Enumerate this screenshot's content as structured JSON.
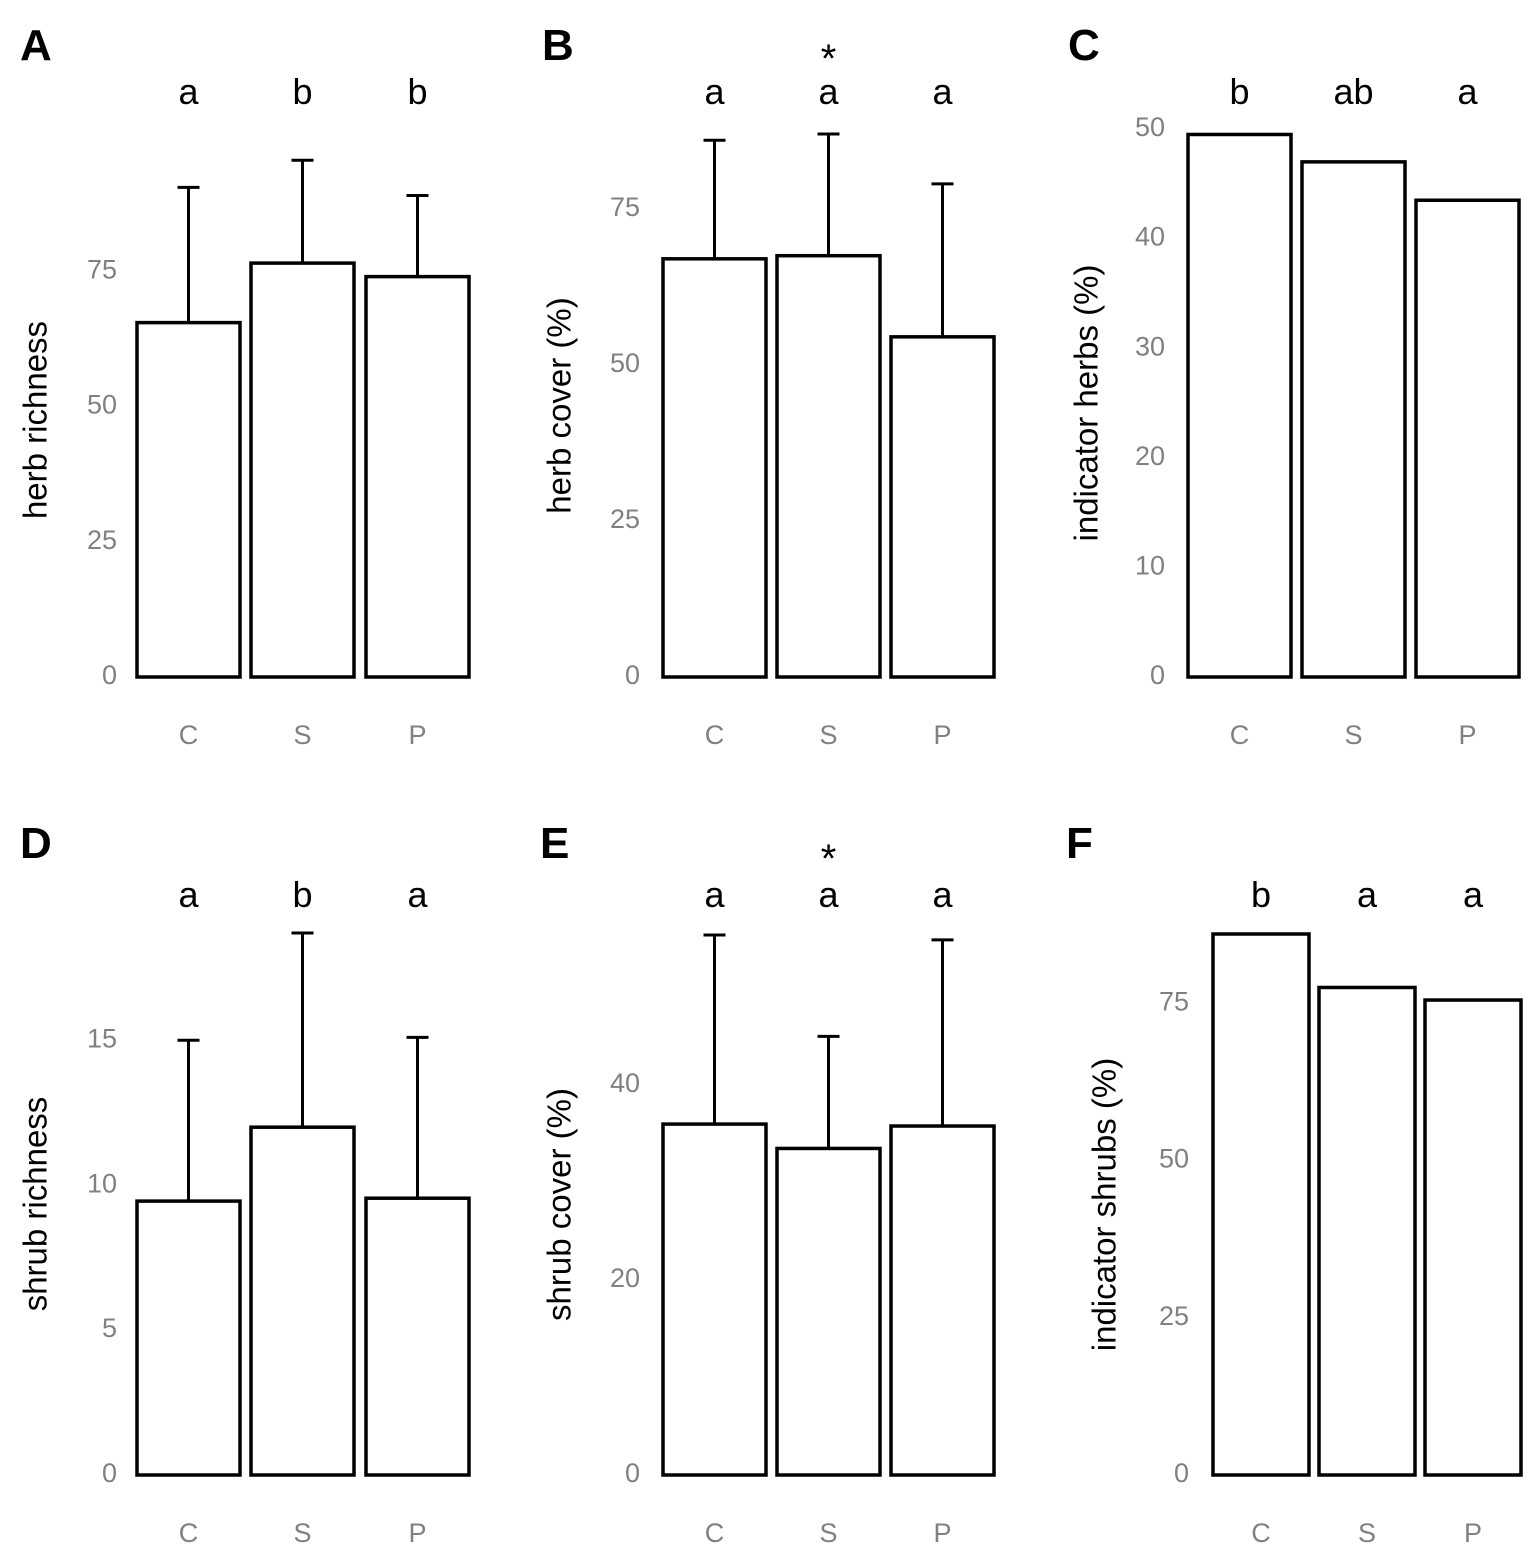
{
  "chart_data": [
    {
      "panel": "A",
      "type": "bar",
      "categories": [
        "C",
        "S",
        "P"
      ],
      "values": [
        65.5,
        76.5,
        74
      ],
      "error_upper": [
        90.5,
        95.5,
        89
      ],
      "sig_letters": [
        "a",
        "b",
        "b"
      ],
      "asterisk": "",
      "ylabel": "herb richness",
      "yticks": [
        0,
        25,
        50,
        75
      ],
      "ylim": [
        0,
        95
      ]
    },
    {
      "panel": "B",
      "type": "bar",
      "categories": [
        "C",
        "S",
        "P"
      ],
      "values": [
        67,
        67.5,
        54.5
      ],
      "error_upper": [
        86,
        87,
        79
      ],
      "sig_letters": [
        "a",
        "a",
        "a"
      ],
      "asterisk": "*",
      "ylabel": "herb cover (%)",
      "yticks": [
        0,
        25,
        50,
        75
      ],
      "ylim": [
        0,
        87
      ]
    },
    {
      "panel": "C",
      "type": "bar",
      "categories": [
        "C",
        "S",
        "P"
      ],
      "values": [
        49.5,
        47,
        43.5
      ],
      "error_upper": [
        null,
        null,
        null
      ],
      "sig_letters": [
        "b",
        "ab",
        "a"
      ],
      "asterisk": "",
      "ylabel": "indicator herbs (%)",
      "yticks": [
        0,
        10,
        20,
        30,
        40,
        50
      ],
      "ylim": [
        0,
        50
      ]
    },
    {
      "panel": "D",
      "type": "bar",
      "categories": [
        "C",
        "S",
        "P"
      ],
      "values": [
        9.45,
        12,
        9.55
      ],
      "error_upper": [
        15,
        18.7,
        15.1
      ],
      "sig_letters": [
        "a",
        "b",
        "a"
      ],
      "asterisk": "",
      "ylabel": "shrub richness",
      "yticks": [
        0,
        5,
        10,
        15
      ],
      "ylim": [
        0,
        18.7
      ]
    },
    {
      "panel": "E",
      "type": "bar",
      "categories": [
        "C",
        "S",
        "P"
      ],
      "values": [
        36,
        33.5,
        35.8
      ],
      "error_upper": [
        55.4,
        45,
        54.9
      ],
      "sig_letters": [
        "a",
        "a",
        "a"
      ],
      "asterisk": "*",
      "ylabel": "shrub cover (%)",
      "yticks": [
        0,
        20,
        40
      ],
      "ylim": [
        0,
        55.5
      ]
    },
    {
      "panel": "F",
      "type": "bar",
      "categories": [
        "C",
        "S",
        "P"
      ],
      "values": [
        86,
        77.5,
        75.5
      ],
      "error_upper": [
        null,
        null,
        null
      ],
      "sig_letters": [
        "b",
        "a",
        "a"
      ],
      "asterisk": "",
      "ylabel": "indicator shrubs (%)",
      "yticks": [
        0,
        25,
        50,
        75
      ],
      "ylim": [
        0,
        86
      ]
    }
  ]
}
